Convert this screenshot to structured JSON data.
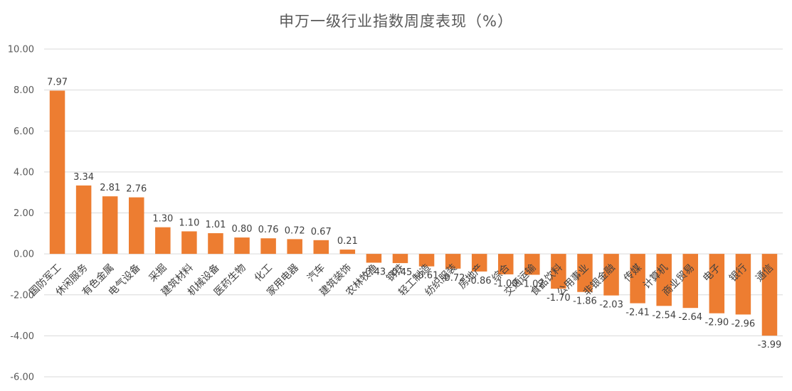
{
  "chart_data": {
    "type": "bar",
    "title": "申万一级行业指数周度表现（%）",
    "xlabel": "",
    "ylabel": "",
    "ylim": [
      -6,
      10
    ],
    "yticks": [
      10,
      8,
      6,
      4,
      2,
      0,
      -2,
      -4,
      -6
    ],
    "ytick_labels": [
      "10.00",
      "8.00",
      "6.00",
      "4.00",
      "2.00",
      "0.00",
      "-2.00",
      "-4.00",
      "-6.00"
    ],
    "grid": true,
    "legend": "none",
    "bar_color": "#ED7D31",
    "categories": [
      "国防军工",
      "休闲服务",
      "有色金属",
      "电气设备",
      "采掘",
      "建筑材料",
      "机械设备",
      "医药生物",
      "化工",
      "家用电器",
      "汽车",
      "建筑装饰",
      "农林牧渔",
      "钢铁",
      "轻工制造",
      "纺织服装",
      "房地产",
      "综合",
      "交通运输",
      "食品饮料",
      "公用事业",
      "非银金融",
      "传媒",
      "计算机",
      "商业贸易",
      "电子",
      "银行",
      "通信"
    ],
    "values": [
      7.97,
      3.34,
      2.81,
      2.76,
      1.3,
      1.1,
      1.01,
      0.8,
      0.76,
      0.72,
      0.67,
      0.21,
      -0.43,
      -0.45,
      -0.61,
      -0.72,
      -0.86,
      -1.0,
      -1.02,
      -1.7,
      -1.86,
      -2.03,
      -2.41,
      -2.54,
      -2.64,
      -2.9,
      -2.96,
      -3.99
    ],
    "value_labels": [
      "7.97",
      "3.34",
      "2.81",
      "2.76",
      "1.30",
      "1.10",
      "1.01",
      "0.80",
      "0.76",
      "0.72",
      "0.67",
      "0.21",
      "-0.43",
      "-0.45",
      "-0.61",
      "-0.72",
      "-0.86",
      "-1.00",
      "-1.02",
      "-1.70",
      "-1.86",
      "-2.03",
      "-2.41",
      "-2.54",
      "-2.64",
      "-2.90",
      "-2.96",
      "-3.99"
    ]
  }
}
